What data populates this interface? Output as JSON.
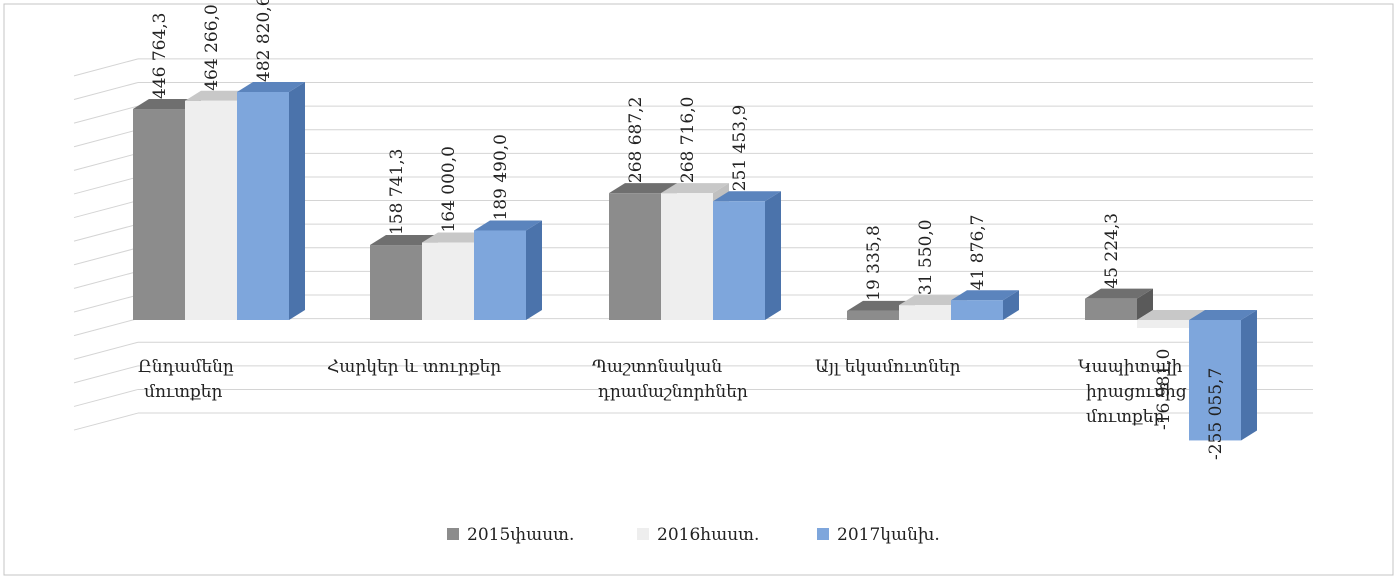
{
  "chart_data": {
    "type": "bar",
    "categories": [
      [
        "Ընդամենը",
        "մուտքեր"
      ],
      [
        "Հարկեր և տուրքեր"
      ],
      [
        "Պաշտոնական",
        "դրամաշնորհներ"
      ],
      [
        "Այլ եկամուտներ"
      ],
      [
        "Կապիտալի",
        "իրացումից",
        "մուտքեր"
      ]
    ],
    "series": [
      {
        "name": "2015փաստ.",
        "values": [
          446764.3,
          158741.3,
          268687.2,
          19335.8,
          45224.3
        ],
        "labels": [
          "446 764,3",
          "158 741,3",
          "268 687,2",
          "19 335,8",
          "45 224,3"
        ]
      },
      {
        "name": "2016հաստ.",
        "values": [
          464266.0,
          164000.0,
          268716.0,
          31550.0,
          -16981.0
        ],
        "labels": [
          "464 266,0",
          "164 000,0",
          "268 716,0",
          "31 550,0",
          "-16 981,0"
        ]
      },
      {
        "name": "2017կանխ.",
        "values": [
          482820.6,
          189490.0,
          251453.9,
          41876.7,
          -255055.7
        ],
        "labels": [
          "482 820,6",
          "189 490,0",
          "251 453,9",
          "41 876,7",
          "-255 055,7"
        ]
      }
    ],
    "ylim": [
      -250000,
      500000
    ],
    "grid": true,
    "legend": "bottom",
    "colors": {
      "series": [
        "#8c8c8c",
        "#eeeeee",
        "#7ea6dc"
      ],
      "tops": [
        "#6f6f6f",
        "#c8c8c8",
        "#5b84bd"
      ],
      "sides": [
        "#5a5a5a",
        "#c0c0c0",
        "#4b73ab"
      ],
      "grid": "#d4d4d4",
      "frame": "#c4c4c4"
    }
  }
}
